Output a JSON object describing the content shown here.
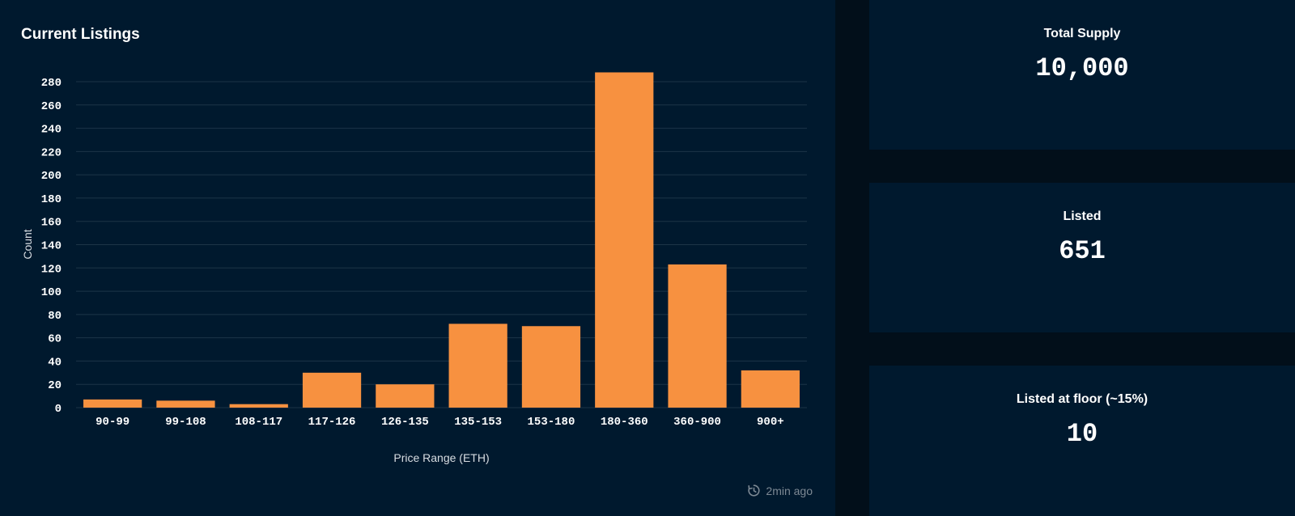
{
  "chart_panel": {
    "title": "Current Listings",
    "updated": "2min ago"
  },
  "stats": [
    {
      "label": "Total Supply",
      "value": "10,000"
    },
    {
      "label": "Listed",
      "value": "651"
    },
    {
      "label": "Listed at floor (~15%)",
      "value": "10"
    }
  ],
  "colors": {
    "bar": "#f79140",
    "panel_bg": "#00192e",
    "page_bg": "#020f1a",
    "grid": "#1c3447",
    "muted_text": "#7d8994"
  },
  "chart_data": {
    "type": "bar",
    "title": "Current Listings",
    "xlabel": "Price Range (ETH)",
    "ylabel": "Count",
    "categories": [
      "90-99",
      "99-108",
      "108-117",
      "117-126",
      "126-135",
      "135-153",
      "153-180",
      "180-360",
      "360-900",
      "900+"
    ],
    "values": [
      7,
      6,
      3,
      30,
      20,
      72,
      70,
      288,
      123,
      32
    ],
    "ylim": [
      0,
      280
    ],
    "yticks": [
      0,
      20,
      40,
      60,
      80,
      100,
      120,
      140,
      160,
      180,
      200,
      220,
      240,
      260,
      280
    ],
    "grid": true,
    "legend": "none"
  }
}
